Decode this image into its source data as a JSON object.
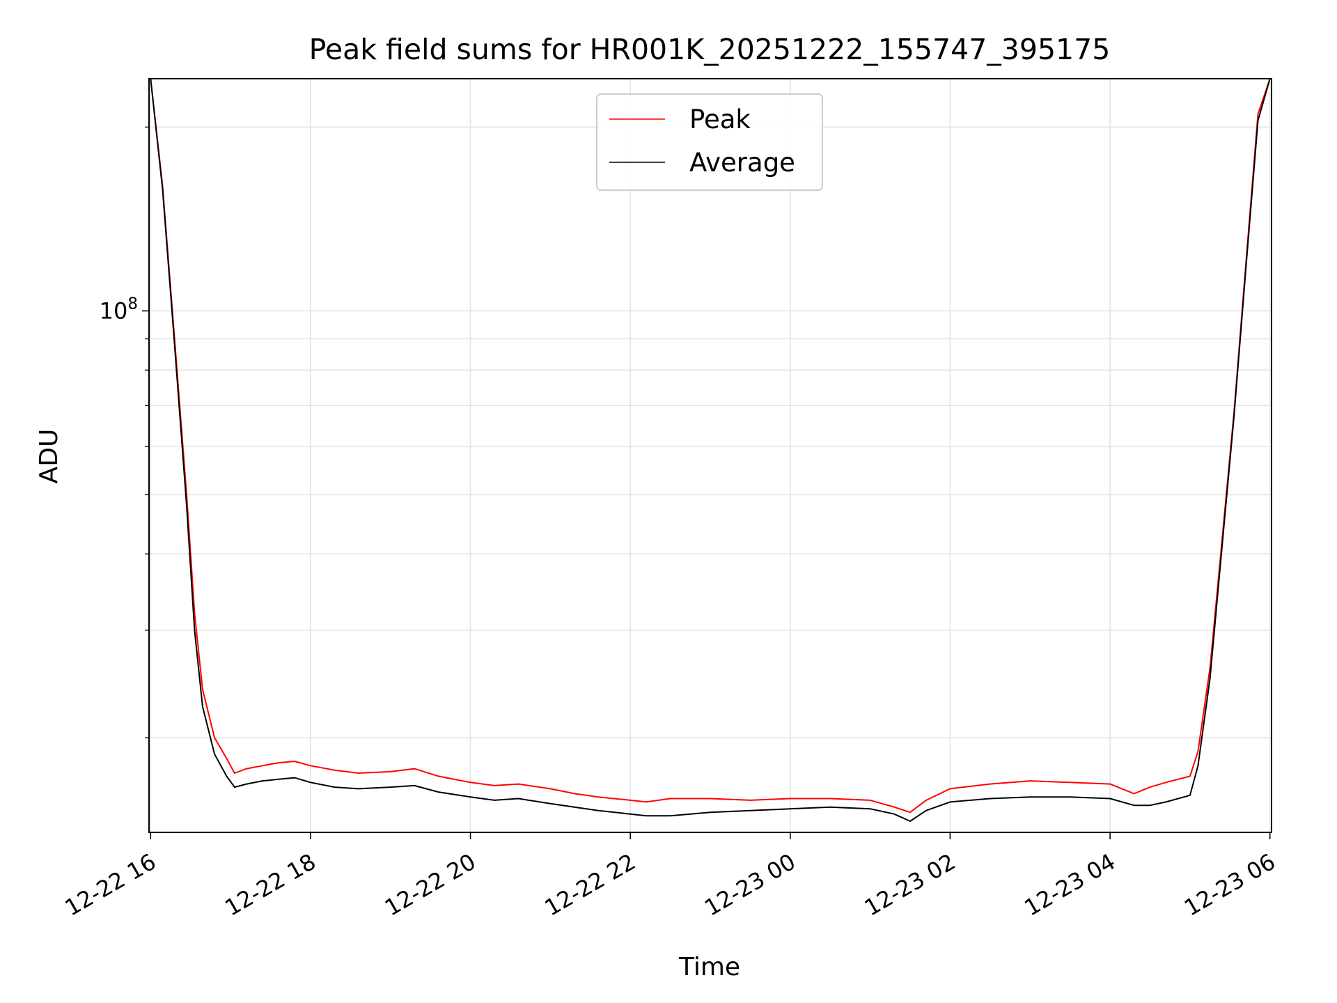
{
  "chart_data": {
    "type": "line",
    "title": "Peak field sums for HR001K_20251222_155747_395175",
    "xlabel": "Time",
    "ylabel": "ADU",
    "yscale": "log",
    "xlim_hours": [
      -0.02,
      14.02
    ],
    "ylim": [
      14000000,
      240000000
    ],
    "x_ticks": [
      {
        "hour": 0,
        "label": "12-22 16"
      },
      {
        "hour": 2,
        "label": "12-22 18"
      },
      {
        "hour": 4,
        "label": "12-22 20"
      },
      {
        "hour": 6,
        "label": "12-22 22"
      },
      {
        "hour": 8,
        "label": "12-23 00"
      },
      {
        "hour": 10,
        "label": "12-23 02"
      },
      {
        "hour": 12,
        "label": "12-23 04"
      },
      {
        "hour": 14,
        "label": "12-23 06"
      }
    ],
    "y_major_ticks": [
      {
        "value": 100000000,
        "base": "10",
        "exp": "8"
      }
    ],
    "y_minor_ticks": [
      20000000,
      30000000,
      40000000,
      50000000,
      60000000,
      70000000,
      80000000,
      90000000,
      200000000
    ],
    "grid": true,
    "legend_position": "upper center",
    "series": [
      {
        "name": "Peak",
        "color": "#ff0000",
        "x_hours": [
          0.0,
          0.15,
          0.3,
          0.45,
          0.55,
          0.65,
          0.8,
          0.95,
          1.05,
          1.2,
          1.4,
          1.6,
          1.8,
          2.0,
          2.3,
          2.6,
          3.0,
          3.3,
          3.6,
          4.0,
          4.3,
          4.6,
          5.0,
          5.3,
          5.6,
          6.0,
          6.2,
          6.5,
          7.0,
          7.5,
          8.0,
          8.5,
          9.0,
          9.3,
          9.5,
          9.7,
          10.0,
          10.5,
          11.0,
          11.5,
          12.0,
          12.3,
          12.5,
          12.7,
          13.0,
          13.1,
          13.25,
          13.4,
          13.55,
          13.7,
          13.85,
          14.0
        ],
        "values": [
          240000000,
          160000000,
          90000000,
          50000000,
          32000000,
          24000000,
          20000000,
          18500000,
          17500000,
          17800000,
          18000000,
          18200000,
          18300000,
          18000000,
          17700000,
          17500000,
          17600000,
          17800000,
          17300000,
          16900000,
          16700000,
          16800000,
          16500000,
          16200000,
          16000000,
          15800000,
          15700000,
          15900000,
          15900000,
          15800000,
          15900000,
          15900000,
          15800000,
          15400000,
          15100000,
          15800000,
          16500000,
          16800000,
          17000000,
          16900000,
          16800000,
          16200000,
          16600000,
          16900000,
          17300000,
          19000000,
          26000000,
          42000000,
          68000000,
          120000000,
          210000000,
          240000000
        ]
      },
      {
        "name": "Average",
        "color": "#000000",
        "x_hours": [
          0.0,
          0.15,
          0.3,
          0.45,
          0.55,
          0.65,
          0.8,
          0.95,
          1.05,
          1.2,
          1.4,
          1.6,
          1.8,
          2.0,
          2.3,
          2.6,
          3.0,
          3.3,
          3.6,
          4.0,
          4.3,
          4.6,
          5.0,
          5.3,
          5.6,
          6.0,
          6.2,
          6.5,
          7.0,
          7.5,
          8.0,
          8.5,
          9.0,
          9.3,
          9.5,
          9.7,
          10.0,
          10.5,
          11.0,
          11.5,
          12.0,
          12.3,
          12.5,
          12.7,
          13.0,
          13.1,
          13.25,
          13.4,
          13.55,
          13.7,
          13.85,
          14.0
        ],
        "values": [
          240000000,
          158000000,
          88000000,
          48000000,
          30000000,
          22500000,
          18800000,
          17300000,
          16600000,
          16800000,
          17000000,
          17100000,
          17200000,
          16900000,
          16600000,
          16500000,
          16600000,
          16700000,
          16300000,
          16000000,
          15800000,
          15900000,
          15600000,
          15400000,
          15200000,
          15000000,
          14900000,
          14900000,
          15100000,
          15200000,
          15300000,
          15400000,
          15300000,
          15000000,
          14600000,
          15200000,
          15700000,
          15900000,
          16000000,
          16000000,
          15900000,
          15500000,
          15500000,
          15700000,
          16100000,
          18000000,
          25000000,
          41000000,
          67000000,
          118000000,
          205000000,
          240000000
        ]
      }
    ]
  }
}
